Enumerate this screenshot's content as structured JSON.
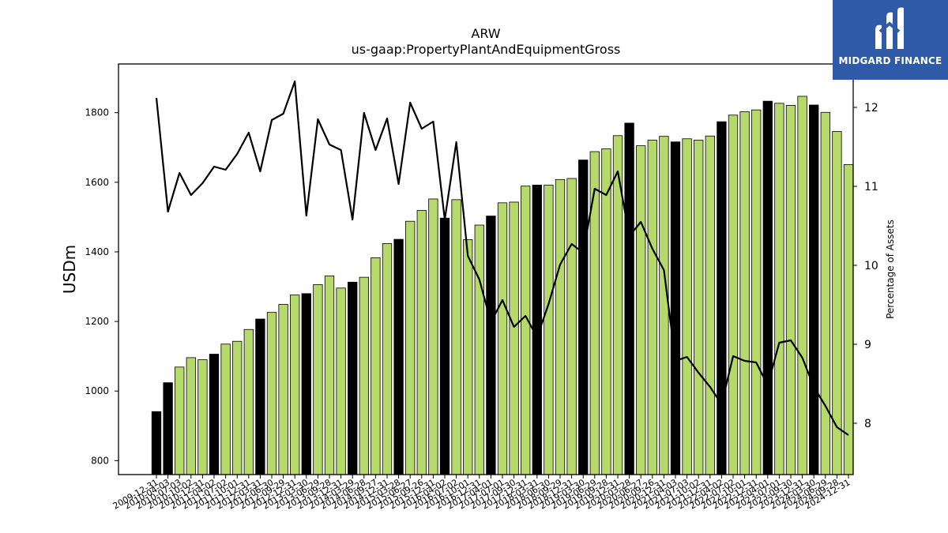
{
  "logo": {
    "text": "MIDGARD FINANCE",
    "color": "#2f5aa8"
  },
  "chart_data": {
    "type": "bar",
    "title": "ARW",
    "subtitle": "us-gaap:PropertyPlantAndEquipmentGross",
    "ylabel": "USDm",
    "y2label": "Percentage of Assets",
    "ylim": [
      760,
      1940
    ],
    "y2lim": [
      7.35,
      12.55
    ],
    "yticks": [
      800,
      1000,
      1200,
      1400,
      1600,
      1800
    ],
    "y2ticks": [
      8,
      9,
      10,
      11,
      12
    ],
    "colors": {
      "annual": "#000000",
      "quarterly": "#b5d96b"
    },
    "categories": [
      "2009-12-31",
      "2010-04-03",
      "2010-07-03",
      "2010-10-02",
      "2010-12-31",
      "2011-04-02",
      "2011-07-02",
      "2011-10-01",
      "2011-12-31",
      "2012-03-31",
      "2012-06-30",
      "2012-09-29",
      "2012-12-31",
      "2013-03-30",
      "2013-06-29",
      "2013-09-28",
      "2013-12-31",
      "2014-03-29",
      "2014-06-28",
      "2014-09-27",
      "2014-12-31",
      "2015-03-28",
      "2015-06-27",
      "2015-09-26",
      "2015-12-31",
      "2016-04-02",
      "2016-07-02",
      "2016-10-01",
      "2016-12-31",
      "2017-04-01",
      "2017-07-01",
      "2017-09-30",
      "2017-12-31",
      "2018-03-31",
      "2018-06-30",
      "2018-09-29",
      "2018-12-31",
      "2019-03-30",
      "2019-06-29",
      "2019-09-28",
      "2019-12-31",
      "2020-03-28",
      "2020-06-27",
      "2020-09-26",
      "2020-12-31",
      "2021-04-03",
      "2021-07-03",
      "2021-10-02",
      "2021-12-31",
      "2022-04-02",
      "2022-07-02",
      "2022-10-01",
      "2022-12-31",
      "2023-04-01",
      "2023-07-01",
      "2023-09-30",
      "2023-12-31",
      "2024-03-30",
      "2024-06-29",
      "2024-09-28",
      "2024-12-31"
    ],
    "values": [
      941,
      1024,
      1069,
      1096,
      1090,
      1106,
      1135,
      1143,
      1177,
      1207,
      1226,
      1249,
      1276,
      1280,
      1306,
      1331,
      1296,
      1313,
      1327,
      1383,
      1424,
      1436,
      1488,
      1519,
      1552,
      1497,
      1550,
      1435,
      1477,
      1503,
      1541,
      1543,
      1589,
      1592,
      1592,
      1608,
      1611,
      1664,
      1688,
      1696,
      1734,
      1770,
      1705,
      1721,
      1732,
      1716,
      1725,
      1721,
      1733,
      1774,
      1793,
      1803,
      1808,
      1833,
      1827,
      1821,
      1847,
      1822,
      1801,
      1746,
      1651
    ],
    "annual": [
      1,
      1,
      0,
      0,
      0,
      1,
      0,
      0,
      0,
      1,
      0,
      0,
      0,
      1,
      0,
      0,
      0,
      1,
      0,
      0,
      0,
      1,
      0,
      0,
      0,
      1,
      0,
      0,
      0,
      1,
      0,
      0,
      0,
      1,
      0,
      0,
      0,
      1,
      0,
      0,
      0,
      1,
      0,
      0,
      0,
      1,
      0,
      0,
      0,
      1,
      0,
      0,
      0,
      1,
      0,
      0,
      0,
      1,
      0,
      0,
      0
    ],
    "line": [
      12.12,
      10.68,
      11.17,
      10.89,
      11.04,
      11.25,
      11.21,
      11.41,
      11.68,
      11.19,
      11.84,
      11.92,
      12.33,
      10.63,
      11.85,
      11.53,
      11.46,
      10.58,
      11.93,
      11.46,
      11.86,
      11.03,
      12.06,
      11.73,
      11.82,
      10.58,
      11.56,
      10.12,
      9.82,
      9.28,
      9.56,
      9.22,
      9.36,
      9.09,
      9.51,
      10.01,
      10.27,
      10.16,
      10.97,
      10.89,
      11.19,
      10.37,
      10.55,
      10.21,
      9.94,
      8.79,
      8.84,
      8.64,
      8.46,
      8.24,
      8.85,
      8.79,
      8.77,
      8.48,
      9.02,
      9.05,
      8.83,
      8.46,
      8.22,
      7.95,
      7.85
    ]
  }
}
